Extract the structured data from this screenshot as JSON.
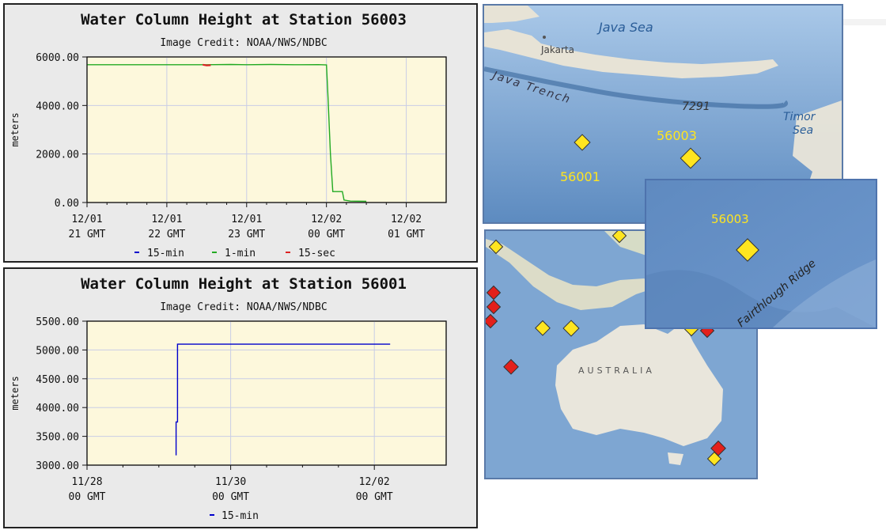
{
  "colors": {
    "plot_bg": "#fdf8dc",
    "series_15min": "#0000cc",
    "series_1min": "#22aa22",
    "series_15sec": "#dd2222",
    "marker_yellow": "#ffe51f",
    "marker_red": "#e3201b",
    "ocean": "#7ea6d2",
    "land": "#e9e6dc"
  },
  "chart_data": [
    {
      "type": "line",
      "title": "Water Column Height at Station 56003",
      "subtitle": "Image Credit: NOAA/NWS/NDBC",
      "ylabel": "meters",
      "ylim": [
        0,
        6000
      ],
      "yticks": [
        {
          "value": 0,
          "label": "0.00"
        },
        {
          "value": 2000,
          "label": "2000.00"
        },
        {
          "value": 4000,
          "label": "4000.00"
        },
        {
          "value": 6000,
          "label": "6000.00"
        }
      ],
      "xlim": [
        21,
        25.5
      ],
      "xticks": [
        {
          "value": 21,
          "line1": "12/01",
          "line2": "21 GMT"
        },
        {
          "value": 22,
          "line1": "12/01",
          "line2": "22 GMT"
        },
        {
          "value": 23,
          "line1": "12/01",
          "line2": "23 GMT"
        },
        {
          "value": 24,
          "line1": "12/02",
          "line2": "00 GMT"
        },
        {
          "value": 25,
          "line1": "12/02",
          "line2": "01 GMT"
        }
      ],
      "legend": [
        "15-min",
        "1-min",
        "15-sec"
      ],
      "series": [
        {
          "name": "1-min",
          "color_key": "series_1min",
          "x": [
            21.0,
            21.5,
            22.0,
            22.5,
            22.8,
            23.0,
            23.3,
            23.6,
            23.9,
            24.0,
            24.02,
            24.05,
            24.08,
            24.2,
            24.22,
            24.3,
            24.5
          ],
          "y": [
            5680,
            5680,
            5680,
            5680,
            5690,
            5680,
            5690,
            5680,
            5685,
            5670,
            4300,
            2000,
            450,
            450,
            100,
            60,
            50
          ]
        },
        {
          "name": "15-sec",
          "color_key": "series_15sec",
          "x": [
            22.45,
            22.5,
            22.55
          ],
          "y": [
            5680,
            5650,
            5660
          ]
        }
      ]
    },
    {
      "type": "line",
      "title": "Water Column Height at Station 56001",
      "subtitle": "Image Credit: NOAA/NWS/NDBC",
      "ylabel": "meters",
      "ylim": [
        3000,
        5500
      ],
      "yticks": [
        {
          "value": 3000,
          "label": "3000.00"
        },
        {
          "value": 3500,
          "label": "3500.00"
        },
        {
          "value": 4000,
          "label": "4000.00"
        },
        {
          "value": 4500,
          "label": "4500.00"
        },
        {
          "value": 5000,
          "label": "5000.00"
        },
        {
          "value": 5500,
          "label": "5500.00"
        }
      ],
      "xlim": [
        0,
        5
      ],
      "xticks": [
        {
          "value": 0,
          "line1": "11/28",
          "line2": "00 GMT"
        },
        {
          "value": 2,
          "line1": "11/30",
          "line2": "00 GMT"
        },
        {
          "value": 4,
          "line1": "12/02",
          "line2": "00 GMT"
        }
      ],
      "legend": [
        "15-min"
      ],
      "series": [
        {
          "name": "15-min",
          "color_key": "series_15min",
          "x": [
            1.24,
            1.24,
            1.26,
            1.26,
            1.28,
            4.22
          ],
          "y": [
            3170,
            3750,
            3750,
            5100,
            5100,
            5100
          ]
        }
      ]
    }
  ],
  "maps": {
    "top": {
      "labels": [
        "Java Sea",
        "Jakarta",
        "Java Trench",
        "7291",
        "Timor",
        "Sea"
      ],
      "stations": [
        "56001",
        "56003"
      ]
    },
    "inset": {
      "station": "56003",
      "feature": "Fairthlough Ridge"
    },
    "bottom": {
      "label": "AUSTRALIA"
    }
  }
}
